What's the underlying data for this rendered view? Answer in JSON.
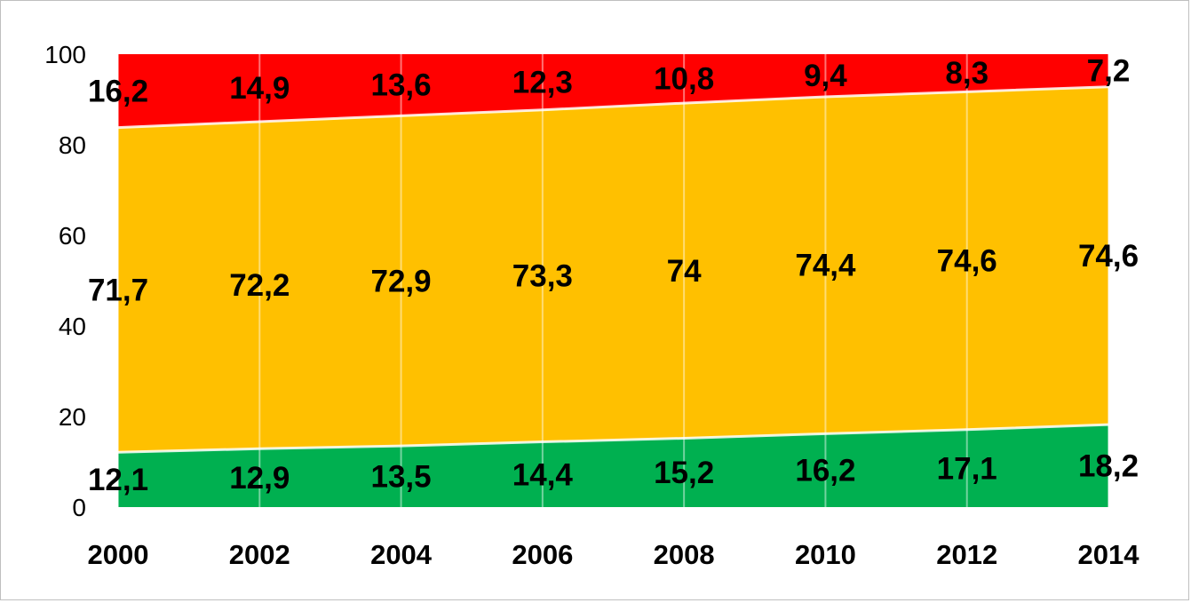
{
  "chart_data": {
    "type": "area",
    "stacked": true,
    "categories": [
      "2000",
      "2002",
      "2004",
      "2006",
      "2008",
      "2010",
      "2012",
      "2014"
    ],
    "series": [
      {
        "color": "#00b050",
        "values": [
          12.1,
          12.9,
          13.5,
          14.4,
          15.2,
          16.2,
          17.1,
          18.2
        ],
        "labels": [
          "12,1",
          "12,9",
          "13,5",
          "14,4",
          "15,2",
          "16,2",
          "17,1",
          "18,2"
        ]
      },
      {
        "color": "#ffc000",
        "values": [
          71.7,
          72.2,
          72.9,
          73.3,
          74,
          74.4,
          74.6,
          74.6
        ],
        "labels": [
          "71,7",
          "72,2",
          "72,9",
          "73,3",
          "74",
          "74,4",
          "74,6",
          "74,6"
        ]
      },
      {
        "color": "#ff0000",
        "values": [
          16.2,
          14.9,
          13.6,
          12.3,
          10.8,
          9.4,
          8.3,
          7.2
        ],
        "labels": [
          "16,2",
          "14,9",
          "13,6",
          "12,3",
          "10,8",
          "9,4",
          "8,3",
          "7,2"
        ]
      }
    ],
    "ylim": [
      0,
      100
    ],
    "yticks": [
      "0",
      "20",
      "40",
      "60",
      "80",
      "100"
    ],
    "grid": "vertical",
    "legend": "none",
    "title": "",
    "xlabel": "",
    "ylabel": ""
  }
}
